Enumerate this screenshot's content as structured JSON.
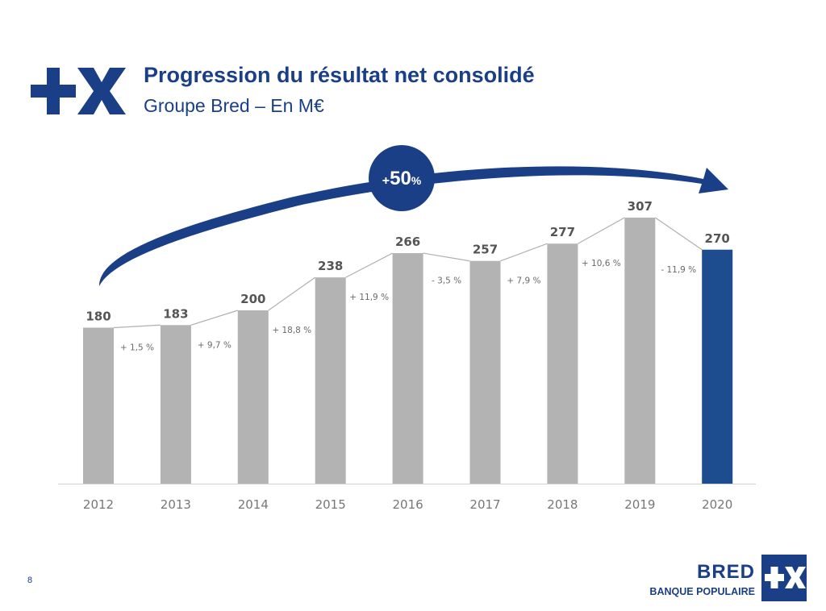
{
  "header": {
    "title": "Progression du résultat net consolidé",
    "subtitle": "Groupe Bred – En M€"
  },
  "footer": {
    "page_number": "8",
    "brand_name": "BRED",
    "brand_tagline": "BANQUE POPULAIRE"
  },
  "colors": {
    "brand_blue": "#1b3f86",
    "bar_gray": "#b3b3b3",
    "highlight_bar": "#1e4d8f"
  },
  "icons": {
    "logo": "plus-x-logo-icon",
    "brand_box": "plus-x-box-icon"
  },
  "chart_data": {
    "type": "bar",
    "categories": [
      "2012",
      "2013",
      "2014",
      "2015",
      "2016",
      "2017",
      "2018",
      "2019",
      "2020"
    ],
    "values": [
      180,
      183,
      200,
      238,
      266,
      257,
      277,
      307,
      270
    ],
    "value_labels": [
      "180",
      "183",
      "200",
      "238",
      "266",
      "257",
      "277",
      "307",
      "270"
    ],
    "growth_labels": [
      "+ 1,5 %",
      "+ 9,7 %",
      "+ 18,8 %",
      "+ 11,9 %",
      "- 3,5 %",
      "+ 7,9 %",
      "+ 10,6 %",
      "- 11,9 %"
    ],
    "highlight_category": "2020",
    "overall_change_label": "+50%",
    "ylim": [
      0,
      340
    ],
    "xlabel": "",
    "ylabel": "",
    "grid": false,
    "legend": "none"
  }
}
